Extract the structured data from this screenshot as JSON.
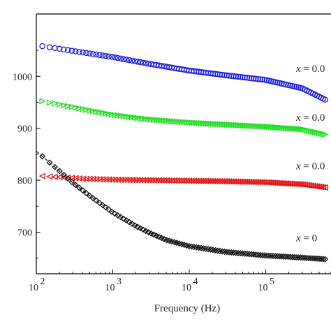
{
  "chart_data": {
    "type": "scatter",
    "title": "",
    "xlabel": "Frequency (Hz)",
    "ylabel": "",
    "x_scale": "log",
    "xlim": [
      100,
      1000000
    ],
    "ylim": [
      620,
      1120
    ],
    "x_tick_labels": [
      "10",
      "10",
      "10",
      "10",
      "10"
    ],
    "x_tick_exponents": [
      "2",
      "3",
      "4",
      "5",
      "6"
    ],
    "x_tick_values": [
      100,
      1000,
      10000,
      100000,
      1000000
    ],
    "y_tick_values": [
      700,
      800,
      900,
      1000
    ],
    "y_tick_labels": [
      "700",
      "800",
      "900",
      "1000"
    ],
    "series": [
      {
        "label": "x = 0.0",
        "color": "#1a1adc",
        "marker": "circle",
        "x": [
          120,
          200,
          400,
          1000,
          3000,
          10000,
          30000,
          100000,
          300000,
          600000
        ],
        "values": [
          1058,
          1053,
          1046,
          1037,
          1024,
          1011,
          1002,
          993,
          977,
          955
        ]
      },
      {
        "label": "x = 0.0",
        "color": "#22dd22",
        "marker": "triangle-right",
        "x": [
          120,
          200,
          400,
          1000,
          3000,
          10000,
          30000,
          100000,
          300000,
          600000
        ],
        "values": [
          952,
          946,
          937,
          926,
          917,
          911,
          907,
          903,
          898,
          888
        ]
      },
      {
        "label": "x = 0.0",
        "color": "#e01515",
        "marker": "triangle-left",
        "x": [
          120,
          200,
          400,
          1000,
          3000,
          10000,
          30000,
          100000,
          300000,
          600000
        ],
        "values": [
          808,
          806,
          803,
          801,
          800,
          799,
          798,
          796,
          792,
          786
        ]
      },
      {
        "label": "x = 0",
        "color": "#111111",
        "marker": "diamond",
        "x": [
          120,
          200,
          300,
          500,
          1000,
          2000,
          3000,
          5000,
          10000,
          30000,
          100000,
          300000,
          600000
        ],
        "values": [
          846,
          818,
          795,
          770,
          738,
          712,
          699,
          685,
          673,
          662,
          655,
          651,
          648
        ]
      }
    ],
    "grid": false,
    "legend": "none"
  }
}
